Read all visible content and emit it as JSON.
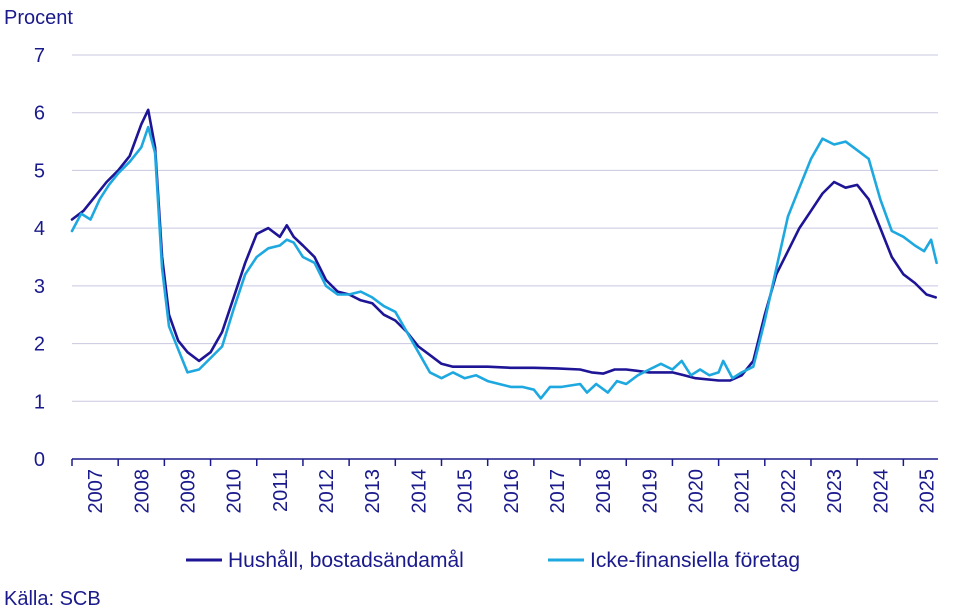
{
  "chart_data": {
    "type": "line",
    "ylabel": "Procent",
    "ylim": [
      0,
      7
    ],
    "yticks": [
      0,
      1,
      2,
      3,
      4,
      5,
      6,
      7
    ],
    "xlim": [
      2007.0,
      2025.75
    ],
    "xticks": [
      "2007",
      "2008",
      "2009",
      "2010",
      "2011",
      "2012",
      "2013",
      "2014",
      "2015",
      "2016",
      "2017",
      "2018",
      "2019",
      "2020",
      "2021",
      "2022",
      "2023",
      "2024",
      "2025"
    ],
    "grid": true,
    "legend_position": "bottom",
    "source": "Källa: SCB",
    "colors": {
      "hushall": "#1e1496",
      "foretag": "#1ea8e0",
      "text": "#1a1a8c",
      "grid": "#c8c8e0",
      "axis": "#1a1a8c"
    },
    "series": [
      {
        "name": "Hushåll, bostadsändamål",
        "color": "#1e1496",
        "points": [
          [
            2007.0,
            4.15
          ],
          [
            2007.25,
            4.3
          ],
          [
            2007.5,
            4.55
          ],
          [
            2007.75,
            4.8
          ],
          [
            2008.0,
            5.0
          ],
          [
            2008.25,
            5.25
          ],
          [
            2008.5,
            5.8
          ],
          [
            2008.65,
            6.05
          ],
          [
            2008.8,
            5.4
          ],
          [
            2008.95,
            3.5
          ],
          [
            2009.1,
            2.5
          ],
          [
            2009.3,
            2.05
          ],
          [
            2009.5,
            1.85
          ],
          [
            2009.75,
            1.7
          ],
          [
            2010.0,
            1.85
          ],
          [
            2010.25,
            2.2
          ],
          [
            2010.5,
            2.8
          ],
          [
            2010.75,
            3.4
          ],
          [
            2011.0,
            3.9
          ],
          [
            2011.25,
            4.0
          ],
          [
            2011.5,
            3.85
          ],
          [
            2011.65,
            4.05
          ],
          [
            2011.8,
            3.85
          ],
          [
            2012.0,
            3.7
          ],
          [
            2012.25,
            3.5
          ],
          [
            2012.5,
            3.1
          ],
          [
            2012.75,
            2.9
          ],
          [
            2013.0,
            2.85
          ],
          [
            2013.25,
            2.75
          ],
          [
            2013.5,
            2.7
          ],
          [
            2013.75,
            2.5
          ],
          [
            2014.0,
            2.4
          ],
          [
            2014.25,
            2.2
          ],
          [
            2014.5,
            1.95
          ],
          [
            2014.75,
            1.8
          ],
          [
            2015.0,
            1.65
          ],
          [
            2015.25,
            1.6
          ],
          [
            2015.5,
            1.6
          ],
          [
            2016.0,
            1.6
          ],
          [
            2016.5,
            1.58
          ],
          [
            2017.0,
            1.58
          ],
          [
            2017.5,
            1.57
          ],
          [
            2018.0,
            1.55
          ],
          [
            2018.25,
            1.5
          ],
          [
            2018.5,
            1.48
          ],
          [
            2018.75,
            1.55
          ],
          [
            2019.0,
            1.55
          ],
          [
            2019.5,
            1.5
          ],
          [
            2020.0,
            1.5
          ],
          [
            2020.25,
            1.45
          ],
          [
            2020.5,
            1.4
          ],
          [
            2021.0,
            1.36
          ],
          [
            2021.25,
            1.36
          ],
          [
            2021.5,
            1.45
          ],
          [
            2021.75,
            1.7
          ],
          [
            2022.0,
            2.5
          ],
          [
            2022.25,
            3.2
          ],
          [
            2022.5,
            3.6
          ],
          [
            2022.75,
            4.0
          ],
          [
            2023.0,
            4.3
          ],
          [
            2023.25,
            4.6
          ],
          [
            2023.5,
            4.8
          ],
          [
            2023.75,
            4.7
          ],
          [
            2024.0,
            4.75
          ],
          [
            2024.25,
            4.5
          ],
          [
            2024.5,
            4.0
          ],
          [
            2024.75,
            3.5
          ],
          [
            2025.0,
            3.2
          ],
          [
            2025.25,
            3.05
          ],
          [
            2025.5,
            2.85
          ],
          [
            2025.7,
            2.8
          ]
        ]
      },
      {
        "name": "Icke-finansiella företag",
        "color": "#1ea8e0",
        "points": [
          [
            2007.0,
            3.95
          ],
          [
            2007.2,
            4.25
          ],
          [
            2007.4,
            4.15
          ],
          [
            2007.6,
            4.5
          ],
          [
            2007.8,
            4.75
          ],
          [
            2008.0,
            4.95
          ],
          [
            2008.25,
            5.15
          ],
          [
            2008.5,
            5.4
          ],
          [
            2008.65,
            5.75
          ],
          [
            2008.8,
            5.3
          ],
          [
            2008.95,
            3.3
          ],
          [
            2009.1,
            2.3
          ],
          [
            2009.3,
            1.9
          ],
          [
            2009.5,
            1.5
          ],
          [
            2009.75,
            1.55
          ],
          [
            2010.0,
            1.75
          ],
          [
            2010.25,
            1.95
          ],
          [
            2010.5,
            2.6
          ],
          [
            2010.75,
            3.2
          ],
          [
            2011.0,
            3.5
          ],
          [
            2011.25,
            3.65
          ],
          [
            2011.5,
            3.7
          ],
          [
            2011.65,
            3.8
          ],
          [
            2011.8,
            3.75
          ],
          [
            2012.0,
            3.5
          ],
          [
            2012.25,
            3.4
          ],
          [
            2012.5,
            3.0
          ],
          [
            2012.75,
            2.85
          ],
          [
            2013.0,
            2.85
          ],
          [
            2013.25,
            2.9
          ],
          [
            2013.5,
            2.8
          ],
          [
            2013.75,
            2.65
          ],
          [
            2014.0,
            2.55
          ],
          [
            2014.25,
            2.2
          ],
          [
            2014.5,
            1.85
          ],
          [
            2014.75,
            1.5
          ],
          [
            2015.0,
            1.4
          ],
          [
            2015.25,
            1.5
          ],
          [
            2015.5,
            1.4
          ],
          [
            2015.75,
            1.45
          ],
          [
            2016.0,
            1.35
          ],
          [
            2016.25,
            1.3
          ],
          [
            2016.5,
            1.25
          ],
          [
            2016.75,
            1.25
          ],
          [
            2017.0,
            1.2
          ],
          [
            2017.15,
            1.05
          ],
          [
            2017.35,
            1.25
          ],
          [
            2017.6,
            1.25
          ],
          [
            2018.0,
            1.3
          ],
          [
            2018.15,
            1.15
          ],
          [
            2018.35,
            1.3
          ],
          [
            2018.6,
            1.15
          ],
          [
            2018.8,
            1.35
          ],
          [
            2019.0,
            1.3
          ],
          [
            2019.25,
            1.45
          ],
          [
            2019.5,
            1.55
          ],
          [
            2019.75,
            1.65
          ],
          [
            2020.0,
            1.55
          ],
          [
            2020.2,
            1.7
          ],
          [
            2020.4,
            1.45
          ],
          [
            2020.6,
            1.55
          ],
          [
            2020.8,
            1.45
          ],
          [
            2021.0,
            1.5
          ],
          [
            2021.1,
            1.7
          ],
          [
            2021.3,
            1.4
          ],
          [
            2021.5,
            1.5
          ],
          [
            2021.75,
            1.6
          ],
          [
            2022.0,
            2.4
          ],
          [
            2022.25,
            3.3
          ],
          [
            2022.5,
            4.2
          ],
          [
            2022.75,
            4.7
          ],
          [
            2023.0,
            5.2
          ],
          [
            2023.25,
            5.55
          ],
          [
            2023.5,
            5.45
          ],
          [
            2023.75,
            5.5
          ],
          [
            2024.0,
            5.35
          ],
          [
            2024.25,
            5.2
          ],
          [
            2024.5,
            4.5
          ],
          [
            2024.75,
            3.95
          ],
          [
            2025.0,
            3.85
          ],
          [
            2025.25,
            3.7
          ],
          [
            2025.45,
            3.6
          ],
          [
            2025.6,
            3.8
          ],
          [
            2025.72,
            3.4
          ]
        ]
      }
    ]
  }
}
